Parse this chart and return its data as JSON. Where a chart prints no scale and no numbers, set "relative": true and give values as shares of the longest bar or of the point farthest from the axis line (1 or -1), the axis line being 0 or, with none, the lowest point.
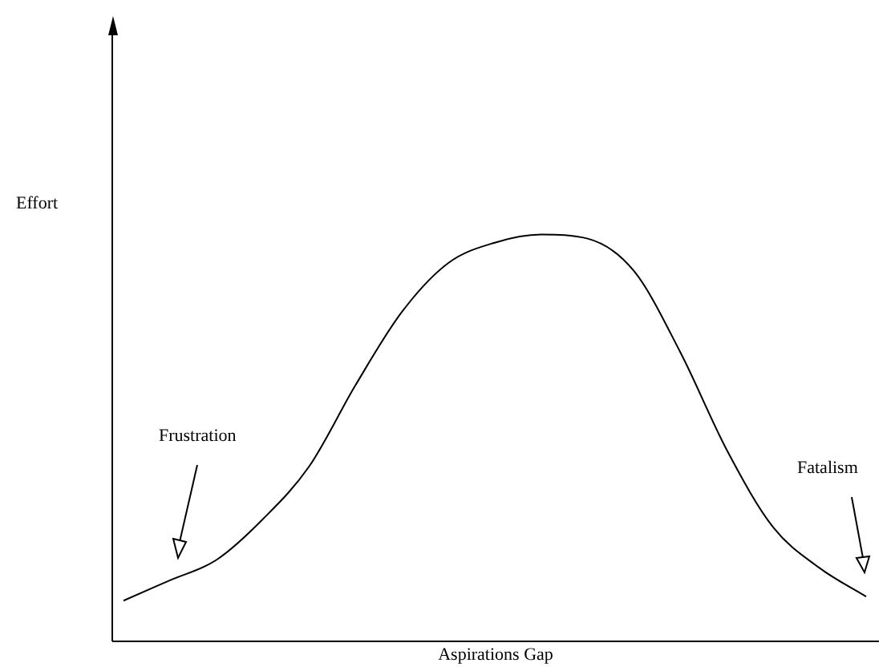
{
  "chart_data": {
    "type": "line",
    "relative": true,
    "xlabel": "Aspirations Gap",
    "ylabel": "Effort",
    "color": "#000000",
    "marker": "none",
    "categories": [
      null,
      null,
      null,
      null,
      null,
      null,
      null,
      null,
      null,
      null,
      null,
      null,
      null,
      null,
      null,
      null,
      null
    ],
    "values": [
      0.1,
      0.15,
      0.2,
      0.3,
      0.43,
      0.63,
      0.81,
      0.93,
      0.98,
      1.0,
      0.99,
      0.91,
      0.71,
      0.47,
      0.28,
      0.18,
      0.11
    ],
    "annotations": [
      "Frustration",
      "Fatalism"
    ]
  }
}
